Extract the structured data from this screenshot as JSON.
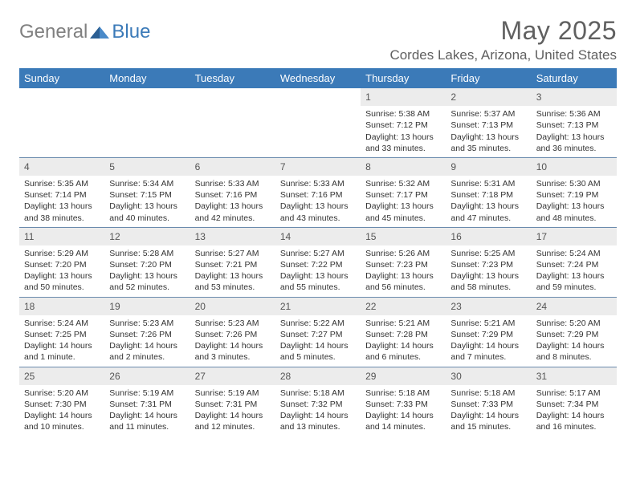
{
  "logo": {
    "general": "General",
    "blue": "Blue"
  },
  "title": "May 2025",
  "location": "Cordes Lakes, Arizona, United States",
  "colors": {
    "header_bg": "#3b7ab8",
    "header_text": "#ffffff",
    "daynum_bg": "#ececec",
    "text": "#333333",
    "muted": "#606060",
    "row_border": "#6a8bad"
  },
  "day_headers": [
    "Sunday",
    "Monday",
    "Tuesday",
    "Wednesday",
    "Thursday",
    "Friday",
    "Saturday"
  ],
  "weeks": [
    [
      null,
      null,
      null,
      null,
      {
        "n": "1",
        "sr": "Sunrise: 5:38 AM",
        "ss": "Sunset: 7:12 PM",
        "dl": "Daylight: 13 hours and 33 minutes."
      },
      {
        "n": "2",
        "sr": "Sunrise: 5:37 AM",
        "ss": "Sunset: 7:13 PM",
        "dl": "Daylight: 13 hours and 35 minutes."
      },
      {
        "n": "3",
        "sr": "Sunrise: 5:36 AM",
        "ss": "Sunset: 7:13 PM",
        "dl": "Daylight: 13 hours and 36 minutes."
      }
    ],
    [
      {
        "n": "4",
        "sr": "Sunrise: 5:35 AM",
        "ss": "Sunset: 7:14 PM",
        "dl": "Daylight: 13 hours and 38 minutes."
      },
      {
        "n": "5",
        "sr": "Sunrise: 5:34 AM",
        "ss": "Sunset: 7:15 PM",
        "dl": "Daylight: 13 hours and 40 minutes."
      },
      {
        "n": "6",
        "sr": "Sunrise: 5:33 AM",
        "ss": "Sunset: 7:16 PM",
        "dl": "Daylight: 13 hours and 42 minutes."
      },
      {
        "n": "7",
        "sr": "Sunrise: 5:33 AM",
        "ss": "Sunset: 7:16 PM",
        "dl": "Daylight: 13 hours and 43 minutes."
      },
      {
        "n": "8",
        "sr": "Sunrise: 5:32 AM",
        "ss": "Sunset: 7:17 PM",
        "dl": "Daylight: 13 hours and 45 minutes."
      },
      {
        "n": "9",
        "sr": "Sunrise: 5:31 AM",
        "ss": "Sunset: 7:18 PM",
        "dl": "Daylight: 13 hours and 47 minutes."
      },
      {
        "n": "10",
        "sr": "Sunrise: 5:30 AM",
        "ss": "Sunset: 7:19 PM",
        "dl": "Daylight: 13 hours and 48 minutes."
      }
    ],
    [
      {
        "n": "11",
        "sr": "Sunrise: 5:29 AM",
        "ss": "Sunset: 7:20 PM",
        "dl": "Daylight: 13 hours and 50 minutes."
      },
      {
        "n": "12",
        "sr": "Sunrise: 5:28 AM",
        "ss": "Sunset: 7:20 PM",
        "dl": "Daylight: 13 hours and 52 minutes."
      },
      {
        "n": "13",
        "sr": "Sunrise: 5:27 AM",
        "ss": "Sunset: 7:21 PM",
        "dl": "Daylight: 13 hours and 53 minutes."
      },
      {
        "n": "14",
        "sr": "Sunrise: 5:27 AM",
        "ss": "Sunset: 7:22 PM",
        "dl": "Daylight: 13 hours and 55 minutes."
      },
      {
        "n": "15",
        "sr": "Sunrise: 5:26 AM",
        "ss": "Sunset: 7:23 PM",
        "dl": "Daylight: 13 hours and 56 minutes."
      },
      {
        "n": "16",
        "sr": "Sunrise: 5:25 AM",
        "ss": "Sunset: 7:23 PM",
        "dl": "Daylight: 13 hours and 58 minutes."
      },
      {
        "n": "17",
        "sr": "Sunrise: 5:24 AM",
        "ss": "Sunset: 7:24 PM",
        "dl": "Daylight: 13 hours and 59 minutes."
      }
    ],
    [
      {
        "n": "18",
        "sr": "Sunrise: 5:24 AM",
        "ss": "Sunset: 7:25 PM",
        "dl": "Daylight: 14 hours and 1 minute."
      },
      {
        "n": "19",
        "sr": "Sunrise: 5:23 AM",
        "ss": "Sunset: 7:26 PM",
        "dl": "Daylight: 14 hours and 2 minutes."
      },
      {
        "n": "20",
        "sr": "Sunrise: 5:23 AM",
        "ss": "Sunset: 7:26 PM",
        "dl": "Daylight: 14 hours and 3 minutes."
      },
      {
        "n": "21",
        "sr": "Sunrise: 5:22 AM",
        "ss": "Sunset: 7:27 PM",
        "dl": "Daylight: 14 hours and 5 minutes."
      },
      {
        "n": "22",
        "sr": "Sunrise: 5:21 AM",
        "ss": "Sunset: 7:28 PM",
        "dl": "Daylight: 14 hours and 6 minutes."
      },
      {
        "n": "23",
        "sr": "Sunrise: 5:21 AM",
        "ss": "Sunset: 7:29 PM",
        "dl": "Daylight: 14 hours and 7 minutes."
      },
      {
        "n": "24",
        "sr": "Sunrise: 5:20 AM",
        "ss": "Sunset: 7:29 PM",
        "dl": "Daylight: 14 hours and 8 minutes."
      }
    ],
    [
      {
        "n": "25",
        "sr": "Sunrise: 5:20 AM",
        "ss": "Sunset: 7:30 PM",
        "dl": "Daylight: 14 hours and 10 minutes."
      },
      {
        "n": "26",
        "sr": "Sunrise: 5:19 AM",
        "ss": "Sunset: 7:31 PM",
        "dl": "Daylight: 14 hours and 11 minutes."
      },
      {
        "n": "27",
        "sr": "Sunrise: 5:19 AM",
        "ss": "Sunset: 7:31 PM",
        "dl": "Daylight: 14 hours and 12 minutes."
      },
      {
        "n": "28",
        "sr": "Sunrise: 5:18 AM",
        "ss": "Sunset: 7:32 PM",
        "dl": "Daylight: 14 hours and 13 minutes."
      },
      {
        "n": "29",
        "sr": "Sunrise: 5:18 AM",
        "ss": "Sunset: 7:33 PM",
        "dl": "Daylight: 14 hours and 14 minutes."
      },
      {
        "n": "30",
        "sr": "Sunrise: 5:18 AM",
        "ss": "Sunset: 7:33 PM",
        "dl": "Daylight: 14 hours and 15 minutes."
      },
      {
        "n": "31",
        "sr": "Sunrise: 5:17 AM",
        "ss": "Sunset: 7:34 PM",
        "dl": "Daylight: 14 hours and 16 minutes."
      }
    ]
  ]
}
